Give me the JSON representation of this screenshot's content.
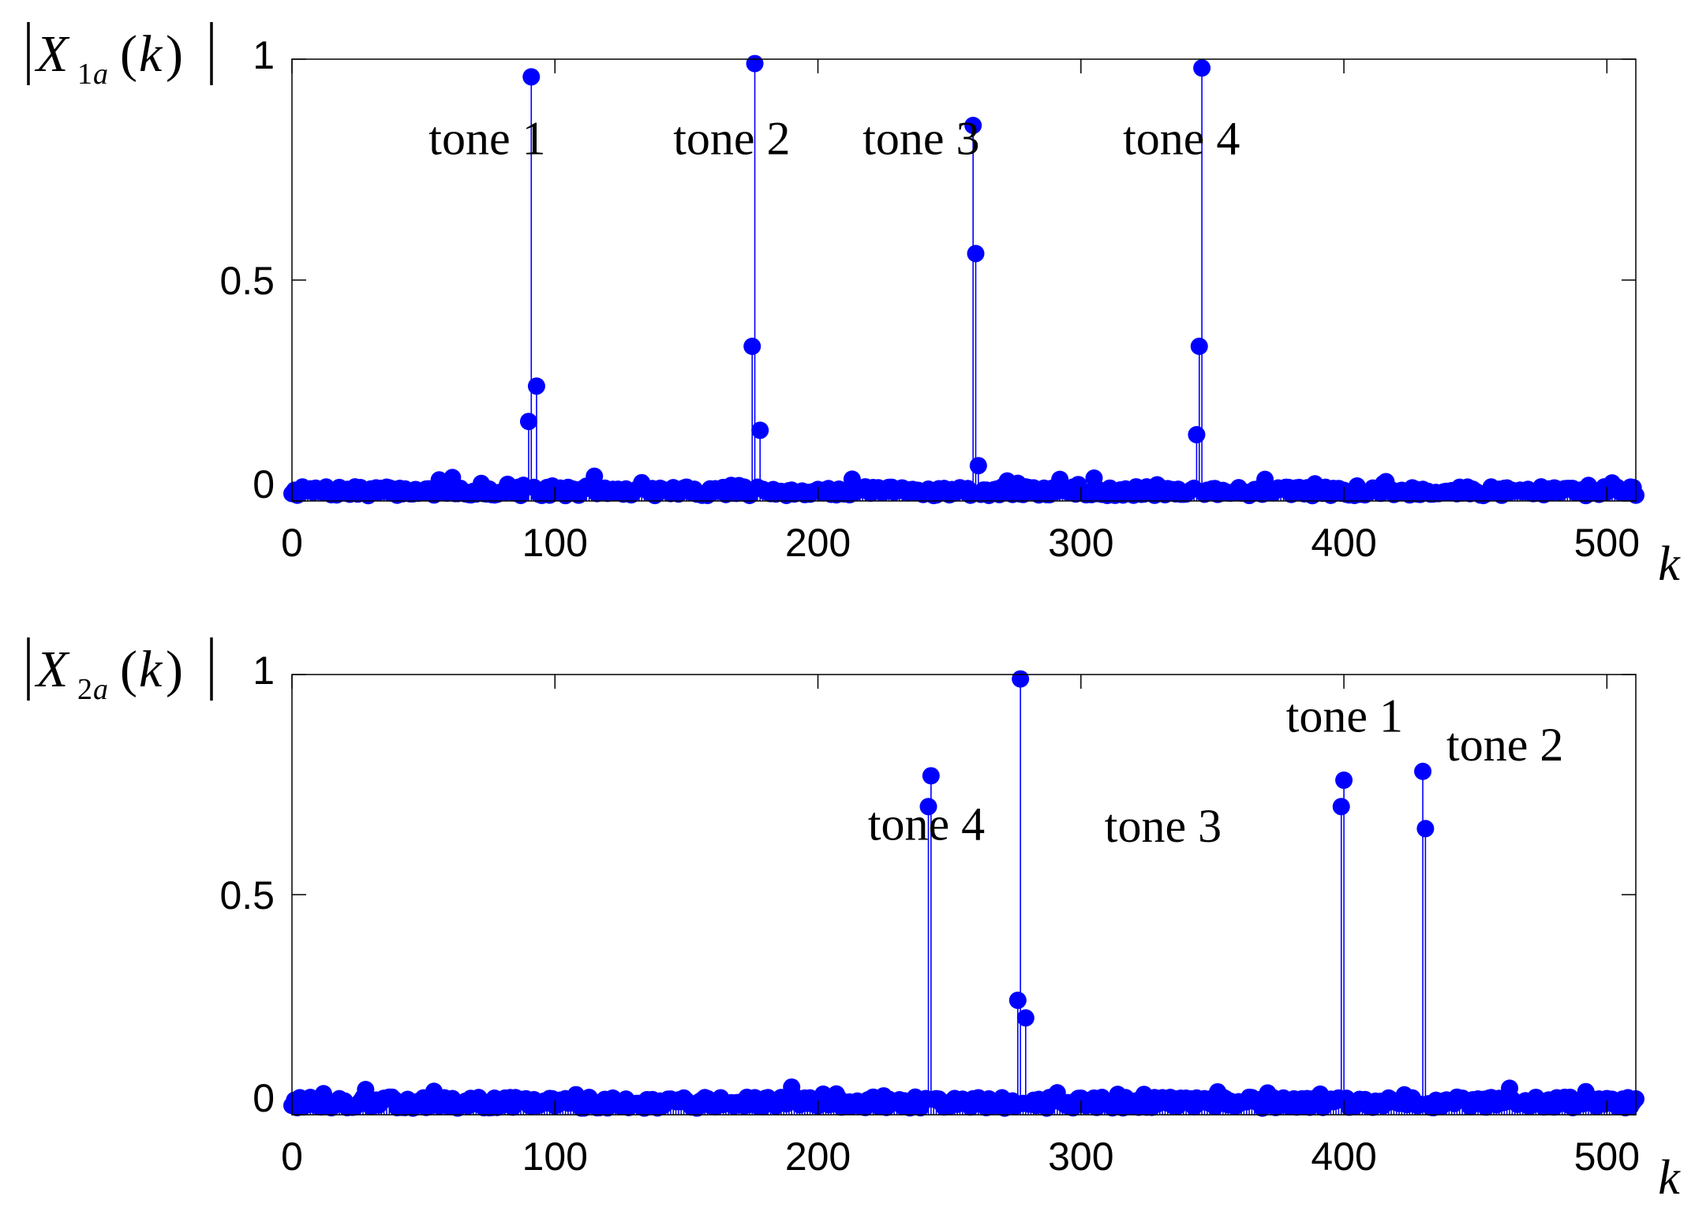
{
  "colors": {
    "series": "#0000ff",
    "axis": "#000000",
    "background": "#ffffff"
  },
  "chart_data": [
    {
      "type": "stem",
      "ylabel": {
        "symbol": "X",
        "sub_num": "1",
        "sub_var": "a",
        "arg": "k"
      },
      "xlabel": "k",
      "xlim": [
        0,
        511
      ],
      "ylim": [
        0,
        1
      ],
      "xticks": [
        0,
        100,
        200,
        300,
        400,
        500
      ],
      "xtick_labels": [
        "0",
        "100",
        "200",
        "300",
        "400",
        "500"
      ],
      "yticks": [
        0,
        0.5,
        1
      ],
      "ytick_labels": [
        "0",
        "0.5",
        "1"
      ],
      "grid": false,
      "peaks": [
        {
          "k": 90,
          "y": 0.18
        },
        {
          "k": 91,
          "y": 0.96
        },
        {
          "k": 93,
          "y": 0.26
        },
        {
          "k": 175,
          "y": 0.35
        },
        {
          "k": 176,
          "y": 0.99
        },
        {
          "k": 178,
          "y": 0.16
        },
        {
          "k": 259,
          "y": 0.85
        },
        {
          "k": 260,
          "y": 0.56
        },
        {
          "k": 261,
          "y": 0.08
        },
        {
          "k": 344,
          "y": 0.15
        },
        {
          "k": 345,
          "y": 0.35
        },
        {
          "k": 346,
          "y": 0.98
        }
      ],
      "noise_floor": {
        "count": 512,
        "level": 0.012,
        "variation": 0.02,
        "seed": 7
      },
      "annotations": [
        {
          "text": "tone 1",
          "k": 52,
          "y": 0.785
        },
        {
          "text": "tone 2",
          "k": 145,
          "y": 0.785
        },
        {
          "text": "tone 3",
          "k": 217,
          "y": 0.785
        },
        {
          "text": "tone 4",
          "k": 316,
          "y": 0.785
        }
      ]
    },
    {
      "type": "stem",
      "ylabel": {
        "symbol": "X",
        "sub_num": "2",
        "sub_var": "a",
        "arg": "k"
      },
      "xlabel": "k",
      "xlim": [
        0,
        511
      ],
      "ylim": [
        0,
        1
      ],
      "xticks": [
        0,
        100,
        200,
        300,
        400,
        500
      ],
      "xtick_labels": [
        "0",
        "100",
        "200",
        "300",
        "400",
        "500"
      ],
      "yticks": [
        0,
        0.5,
        1
      ],
      "ytick_labels": [
        "0",
        "0.5",
        "1"
      ],
      "grid": false,
      "peaks": [
        {
          "k": 242,
          "y": 0.7
        },
        {
          "k": 243,
          "y": 0.77
        },
        {
          "k": 276,
          "y": 0.26
        },
        {
          "k": 277,
          "y": 0.99
        },
        {
          "k": 279,
          "y": 0.22
        },
        {
          "k": 399,
          "y": 0.7
        },
        {
          "k": 400,
          "y": 0.76
        },
        {
          "k": 430,
          "y": 0.78
        },
        {
          "k": 431,
          "y": 0.65
        }
      ],
      "noise_floor": {
        "count": 512,
        "level": 0.015,
        "variation": 0.025,
        "seed": 13
      },
      "annotations": [
        {
          "text": "tone 4",
          "k": 219,
          "y": 0.625
        },
        {
          "text": "tone 3",
          "k": 309,
          "y": 0.62
        },
        {
          "text": "tone 1",
          "k": 378,
          "y": 0.87
        },
        {
          "text": "tone 2",
          "k": 439,
          "y": 0.805
        }
      ]
    }
  ]
}
